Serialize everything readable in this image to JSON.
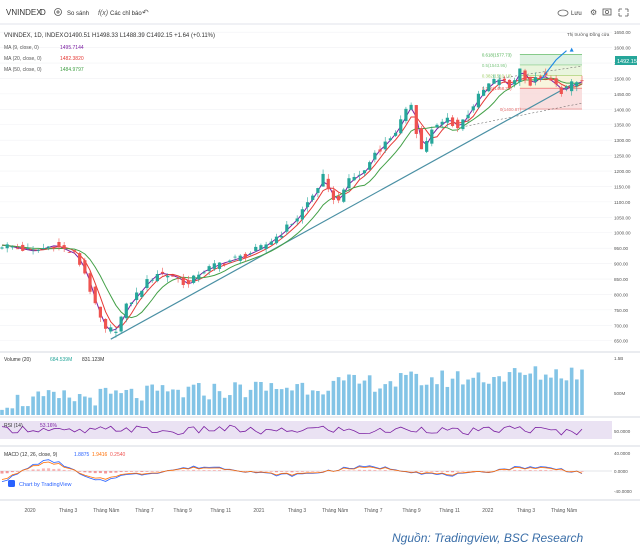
{
  "toolbar": {
    "symbol": "VNINDEX",
    "interval": "D",
    "compare_label": "So sánh",
    "indicators_label": "Các chỉ báo",
    "save_label": "Lưu",
    "undo_icon": "undo-icon",
    "add_icon": "plus-circle-icon",
    "indicator_icon": "fx-icon",
    "cloud_icon": "cloud-icon",
    "settings_icon": "gear-icon",
    "camera_icon": "camera-icon",
    "fullscreen_icon": "fullscreen-icon"
  },
  "legend": {
    "title": "VNINDEX, 1D, INDEX",
    "ohlc": "O1490.51  H1498.33  L1488.39  C1492.15  +1.64 (+0.11%)",
    "ma9_label": "MA (9, close, 0)",
    "ma9_value": "1495.7144",
    "ma20_label": "MA (20, close, 0)",
    "ma20_value": "1482.3820",
    "ma50_label": "MA (50, close, 0)",
    "ma50_value": "1484.9797"
  },
  "fib_labels": [
    "0.618(1577.73)",
    "0.5(1543.95)",
    "0.382(1510.18)",
    "0.236(1468.39)",
    "0(1400.87)"
  ],
  "note_label": "Thị trường Đồng cửa",
  "price_tag": "1492.15",
  "volume_legend": {
    "label": "Volume (20)",
    "v1": "684.539M",
    "v2": "831.123M"
  },
  "rsi_legend": {
    "label": "RSI (14)",
    "value": "53.16%"
  },
  "macd_legend": {
    "label": "MACD (12, 26, close, 9)",
    "v1": "1.8875",
    "v2": "1.9416",
    "v3": "0.2540"
  },
  "watermark": "Chart by TradingView",
  "source_caption": "Nguồn: Tradingview, BSC Research",
  "colors": {
    "up": "#26a69a",
    "down": "#ef5350",
    "ma9": "#7b1fa2",
    "ma20": "#e53935",
    "ma50": "#43a047",
    "trend": "#4a90a4",
    "volume": "#5ab0dd",
    "rsi_band": "#e1d5ee",
    "caption": "#3a6ea8"
  },
  "chart_data": {
    "type": "candlestick",
    "x_tick_labels": [
      "2020",
      "Tháng 3",
      "Tháng Năm",
      "Tháng 7",
      "Tháng 9",
      "Tháng 11",
      "2021",
      "Tháng 3",
      "Tháng Năm",
      "Tháng 7",
      "Tháng 9",
      "Tháng 11",
      "2022",
      "Tháng 3",
      "Tháng Năm"
    ],
    "y_tick_labels": [
      "650.00",
      "700.00",
      "750.00",
      "800.00",
      "850.00",
      "900.00",
      "950.00",
      "1000.00",
      "1050.00",
      "1100.00",
      "1150.00",
      "1200.00",
      "1250.00",
      "1300.00",
      "1350.00",
      "1400.00",
      "1450.00",
      "1500.00",
      "1550.00",
      "1600.00",
      "1650.00"
    ],
    "ylim": [
      620,
      1670
    ],
    "price_path": [
      [
        0,
        960
      ],
      [
        6,
        940
      ],
      [
        10,
        960
      ],
      [
        14,
        930
      ],
      [
        16,
        870
      ],
      [
        18,
        760
      ],
      [
        20,
        680
      ],
      [
        22,
        690
      ],
      [
        24,
        760
      ],
      [
        26,
        800
      ],
      [
        28,
        840
      ],
      [
        30,
        870
      ],
      [
        33,
        860
      ],
      [
        36,
        830
      ],
      [
        38,
        870
      ],
      [
        42,
        900
      ],
      [
        46,
        920
      ],
      [
        50,
        950
      ],
      [
        54,
        1000
      ],
      [
        57,
        1050
      ],
      [
        60,
        1120
      ],
      [
        62,
        1180
      ],
      [
        63,
        1130
      ],
      [
        65,
        1100
      ],
      [
        66,
        1150
      ],
      [
        68,
        1180
      ],
      [
        70,
        1200
      ],
      [
        72,
        1260
      ],
      [
        74,
        1290
      ],
      [
        76,
        1330
      ],
      [
        78,
        1390
      ],
      [
        79,
        1420
      ],
      [
        80,
        1330
      ],
      [
        81,
        1270
      ],
      [
        83,
        1330
      ],
      [
        86,
        1370
      ],
      [
        88,
        1340
      ],
      [
        90,
        1390
      ],
      [
        92,
        1440
      ],
      [
        94,
        1480
      ],
      [
        96,
        1500
      ],
      [
        98,
        1470
      ],
      [
        100,
        1530
      ],
      [
        102,
        1480
      ],
      [
        104,
        1510
      ],
      [
        106,
        1490
      ],
      [
        108,
        1460
      ],
      [
        110,
        1480
      ],
      [
        112,
        1492
      ]
    ],
    "projection_path": [
      [
        104,
        1495
      ],
      [
        107,
        1560
      ],
      [
        109,
        1590
      ]
    ],
    "trendline": [
      [
        21,
        655
      ],
      [
        110,
        1480
      ]
    ],
    "fib_levels": [
      1577.73,
      1543.95,
      1510.18,
      1468.39,
      1400.87
    ],
    "rsi": {
      "value": 53.16,
      "band": [
        30,
        70
      ]
    },
    "macd": {
      "macd": 1.8875,
      "signal": 1.9416,
      "hist": 0.254
    },
    "volume": {
      "last": "831.123M",
      "ma": "684.539M"
    }
  }
}
